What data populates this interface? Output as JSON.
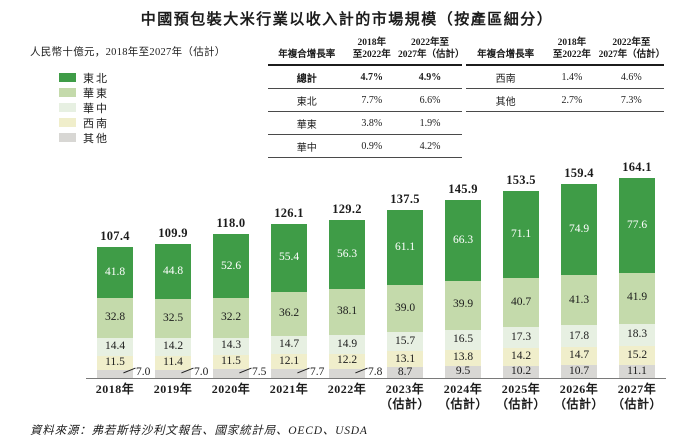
{
  "title": "中國預包裝大米行業以收入計的市場規模（按產區細分）",
  "subtitle": "人民幣十億元，2018年至2027年（估計）",
  "source": "資料來源：弗若斯特沙利文報告、國家統計局、OECD、USDA",
  "colors": {
    "northeast": "#3f9c47",
    "east": "#c4daab",
    "central": "#e7f0e2",
    "southwest": "#f0eecb",
    "other": "#d8d7d4",
    "text": "#1c1c1c",
    "axis": "#7a7a7a"
  },
  "legend": {
    "items": [
      {
        "label": "東北",
        "color": "#3f9c47"
      },
      {
        "label": "華東",
        "color": "#c4daab"
      },
      {
        "label": "華中",
        "color": "#e7f0e2"
      },
      {
        "label": "西南",
        "color": "#f0eecb"
      },
      {
        "label": "其他",
        "color": "#d8d7d4"
      }
    ]
  },
  "cagr_tables": [
    {
      "col_header": "年複合增長率",
      "period1": "2018年\n至2022年",
      "period2": "2022年至\n2027年（估計）",
      "rows": [
        {
          "label": "總計",
          "p1": "4.7%",
          "p2": "4.9%",
          "bold": true
        },
        {
          "label": "東北",
          "p1": "7.7%",
          "p2": "6.6%",
          "bold": false
        },
        {
          "label": "華東",
          "p1": "3.8%",
          "p2": "1.9%",
          "bold": false
        },
        {
          "label": "華中",
          "p1": "0.9%",
          "p2": "4.2%",
          "bold": false
        }
      ]
    },
    {
      "col_header": "年複合增長率",
      "period1": "2018年\n至2022年",
      "period2": "2022年至\n2027年（估計）",
      "rows": [
        {
          "label": "西南",
          "p1": "1.4%",
          "p2": "4.6%",
          "bold": false
        },
        {
          "label": "其他",
          "p1": "2.7%",
          "p2": "7.3%",
          "bold": false
        }
      ]
    }
  ],
  "chart_data": {
    "type": "bar",
    "stacked": true,
    "title": "中國預包裝大米行業以收入計的市場規模（按產區細分）",
    "ylabel": "人民幣十億元",
    "grid": false,
    "legend_position": "left",
    "categories": [
      {
        "label": "2018年",
        "sub": ""
      },
      {
        "label": "2019年",
        "sub": ""
      },
      {
        "label": "2020年",
        "sub": ""
      },
      {
        "label": "2021年",
        "sub": ""
      },
      {
        "label": "2022年",
        "sub": ""
      },
      {
        "label": "2023年",
        "sub": "（估計）"
      },
      {
        "label": "2024年",
        "sub": "（估計）"
      },
      {
        "label": "2025年",
        "sub": "（估計）"
      },
      {
        "label": "2026年",
        "sub": "（估計）"
      },
      {
        "label": "2027年",
        "sub": "（估計）"
      }
    ],
    "totals": [
      107.4,
      109.9,
      118.0,
      126.1,
      129.2,
      137.5,
      145.9,
      153.5,
      159.4,
      164.1
    ],
    "series": [
      {
        "name": "東北",
        "color": "#3f9c47",
        "label_color": "#ffffff",
        "values": [
          41.8,
          44.8,
          52.6,
          55.4,
          56.3,
          61.1,
          66.3,
          71.1,
          74.9,
          77.6
        ]
      },
      {
        "name": "華東",
        "color": "#c4daab",
        "label_color": "#1c1c1c",
        "values": [
          32.8,
          32.5,
          32.2,
          36.2,
          38.1,
          39.0,
          39.9,
          40.7,
          41.3,
          41.9
        ]
      },
      {
        "name": "華中",
        "color": "#e7f0e2",
        "label_color": "#1c1c1c",
        "values": [
          14.4,
          14.2,
          14.3,
          14.7,
          14.9,
          15.7,
          16.5,
          17.3,
          17.8,
          18.3
        ]
      },
      {
        "name": "西南",
        "color": "#f0eecb",
        "label_color": "#1c1c1c",
        "values": [
          11.5,
          11.4,
          11.5,
          12.1,
          12.2,
          13.1,
          13.8,
          14.2,
          14.7,
          15.2
        ]
      },
      {
        "name": "其他",
        "color": "#d8d7d4",
        "label_color": "#1c1c1c",
        "values": [
          7.0,
          7.0,
          7.5,
          7.7,
          7.8,
          8.7,
          9.5,
          10.2,
          10.7,
          11.1
        ]
      }
    ],
    "callout_below": 8.0,
    "ylim": [
      0,
      178.5
    ]
  }
}
